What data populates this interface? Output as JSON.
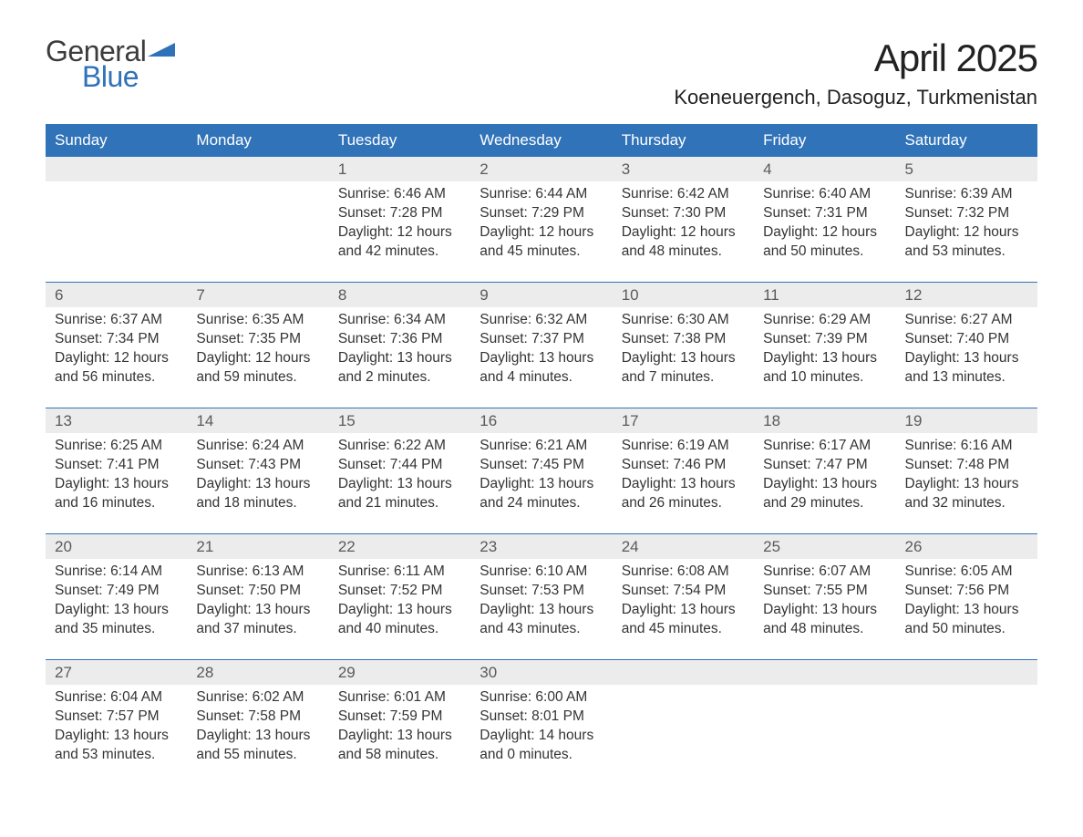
{
  "logo": {
    "line1": "General",
    "line2": "Blue",
    "accent_color": "#2f72b8",
    "text_color": "#3c3c3c"
  },
  "title": "April 2025",
  "location": "Koeneuergench, Dasoguz, Turkmenistan",
  "header_bg": "#3173b9",
  "header_fg": "#ffffff",
  "daynum_bg": "#ececec",
  "sep_color": "#3173b9",
  "page_bg": "#ffffff",
  "text_color": "#343434",
  "font_family": "Arial, Helvetica, sans-serif",
  "title_fontsize": 42,
  "location_fontsize": 22,
  "header_fontsize": 17,
  "body_fontsize": 15.5,
  "day_headers": [
    "Sunday",
    "Monday",
    "Tuesday",
    "Wednesday",
    "Thursday",
    "Friday",
    "Saturday"
  ],
  "weeks": [
    {
      "nums": [
        "",
        "",
        "1",
        "2",
        "3",
        "4",
        "5"
      ],
      "cells": [
        {
          "sunrise": "",
          "sunset": "",
          "daylight": ""
        },
        {
          "sunrise": "",
          "sunset": "",
          "daylight": ""
        },
        {
          "sunrise": "Sunrise: 6:46 AM",
          "sunset": "Sunset: 7:28 PM",
          "daylight": "Daylight: 12 hours and 42 minutes."
        },
        {
          "sunrise": "Sunrise: 6:44 AM",
          "sunset": "Sunset: 7:29 PM",
          "daylight": "Daylight: 12 hours and 45 minutes."
        },
        {
          "sunrise": "Sunrise: 6:42 AM",
          "sunset": "Sunset: 7:30 PM",
          "daylight": "Daylight: 12 hours and 48 minutes."
        },
        {
          "sunrise": "Sunrise: 6:40 AM",
          "sunset": "Sunset: 7:31 PM",
          "daylight": "Daylight: 12 hours and 50 minutes."
        },
        {
          "sunrise": "Sunrise: 6:39 AM",
          "sunset": "Sunset: 7:32 PM",
          "daylight": "Daylight: 12 hours and 53 minutes."
        }
      ]
    },
    {
      "nums": [
        "6",
        "7",
        "8",
        "9",
        "10",
        "11",
        "12"
      ],
      "cells": [
        {
          "sunrise": "Sunrise: 6:37 AM",
          "sunset": "Sunset: 7:34 PM",
          "daylight": "Daylight: 12 hours and 56 minutes."
        },
        {
          "sunrise": "Sunrise: 6:35 AM",
          "sunset": "Sunset: 7:35 PM",
          "daylight": "Daylight: 12 hours and 59 minutes."
        },
        {
          "sunrise": "Sunrise: 6:34 AM",
          "sunset": "Sunset: 7:36 PM",
          "daylight": "Daylight: 13 hours and 2 minutes."
        },
        {
          "sunrise": "Sunrise: 6:32 AM",
          "sunset": "Sunset: 7:37 PM",
          "daylight": "Daylight: 13 hours and 4 minutes."
        },
        {
          "sunrise": "Sunrise: 6:30 AM",
          "sunset": "Sunset: 7:38 PM",
          "daylight": "Daylight: 13 hours and 7 minutes."
        },
        {
          "sunrise": "Sunrise: 6:29 AM",
          "sunset": "Sunset: 7:39 PM",
          "daylight": "Daylight: 13 hours and 10 minutes."
        },
        {
          "sunrise": "Sunrise: 6:27 AM",
          "sunset": "Sunset: 7:40 PM",
          "daylight": "Daylight: 13 hours and 13 minutes."
        }
      ]
    },
    {
      "nums": [
        "13",
        "14",
        "15",
        "16",
        "17",
        "18",
        "19"
      ],
      "cells": [
        {
          "sunrise": "Sunrise: 6:25 AM",
          "sunset": "Sunset: 7:41 PM",
          "daylight": "Daylight: 13 hours and 16 minutes."
        },
        {
          "sunrise": "Sunrise: 6:24 AM",
          "sunset": "Sunset: 7:43 PM",
          "daylight": "Daylight: 13 hours and 18 minutes."
        },
        {
          "sunrise": "Sunrise: 6:22 AM",
          "sunset": "Sunset: 7:44 PM",
          "daylight": "Daylight: 13 hours and 21 minutes."
        },
        {
          "sunrise": "Sunrise: 6:21 AM",
          "sunset": "Sunset: 7:45 PM",
          "daylight": "Daylight: 13 hours and 24 minutes."
        },
        {
          "sunrise": "Sunrise: 6:19 AM",
          "sunset": "Sunset: 7:46 PM",
          "daylight": "Daylight: 13 hours and 26 minutes."
        },
        {
          "sunrise": "Sunrise: 6:17 AM",
          "sunset": "Sunset: 7:47 PM",
          "daylight": "Daylight: 13 hours and 29 minutes."
        },
        {
          "sunrise": "Sunrise: 6:16 AM",
          "sunset": "Sunset: 7:48 PM",
          "daylight": "Daylight: 13 hours and 32 minutes."
        }
      ]
    },
    {
      "nums": [
        "20",
        "21",
        "22",
        "23",
        "24",
        "25",
        "26"
      ],
      "cells": [
        {
          "sunrise": "Sunrise: 6:14 AM",
          "sunset": "Sunset: 7:49 PM",
          "daylight": "Daylight: 13 hours and 35 minutes."
        },
        {
          "sunrise": "Sunrise: 6:13 AM",
          "sunset": "Sunset: 7:50 PM",
          "daylight": "Daylight: 13 hours and 37 minutes."
        },
        {
          "sunrise": "Sunrise: 6:11 AM",
          "sunset": "Sunset: 7:52 PM",
          "daylight": "Daylight: 13 hours and 40 minutes."
        },
        {
          "sunrise": "Sunrise: 6:10 AM",
          "sunset": "Sunset: 7:53 PM",
          "daylight": "Daylight: 13 hours and 43 minutes."
        },
        {
          "sunrise": "Sunrise: 6:08 AM",
          "sunset": "Sunset: 7:54 PM",
          "daylight": "Daylight: 13 hours and 45 minutes."
        },
        {
          "sunrise": "Sunrise: 6:07 AM",
          "sunset": "Sunset: 7:55 PM",
          "daylight": "Daylight: 13 hours and 48 minutes."
        },
        {
          "sunrise": "Sunrise: 6:05 AM",
          "sunset": "Sunset: 7:56 PM",
          "daylight": "Daylight: 13 hours and 50 minutes."
        }
      ]
    },
    {
      "nums": [
        "27",
        "28",
        "29",
        "30",
        "",
        "",
        ""
      ],
      "cells": [
        {
          "sunrise": "Sunrise: 6:04 AM",
          "sunset": "Sunset: 7:57 PM",
          "daylight": "Daylight: 13 hours and 53 minutes."
        },
        {
          "sunrise": "Sunrise: 6:02 AM",
          "sunset": "Sunset: 7:58 PM",
          "daylight": "Daylight: 13 hours and 55 minutes."
        },
        {
          "sunrise": "Sunrise: 6:01 AM",
          "sunset": "Sunset: 7:59 PM",
          "daylight": "Daylight: 13 hours and 58 minutes."
        },
        {
          "sunrise": "Sunrise: 6:00 AM",
          "sunset": "Sunset: 8:01 PM",
          "daylight": "Daylight: 14 hours and 0 minutes."
        },
        {
          "sunrise": "",
          "sunset": "",
          "daylight": ""
        },
        {
          "sunrise": "",
          "sunset": "",
          "daylight": ""
        },
        {
          "sunrise": "",
          "sunset": "",
          "daylight": ""
        }
      ]
    }
  ]
}
